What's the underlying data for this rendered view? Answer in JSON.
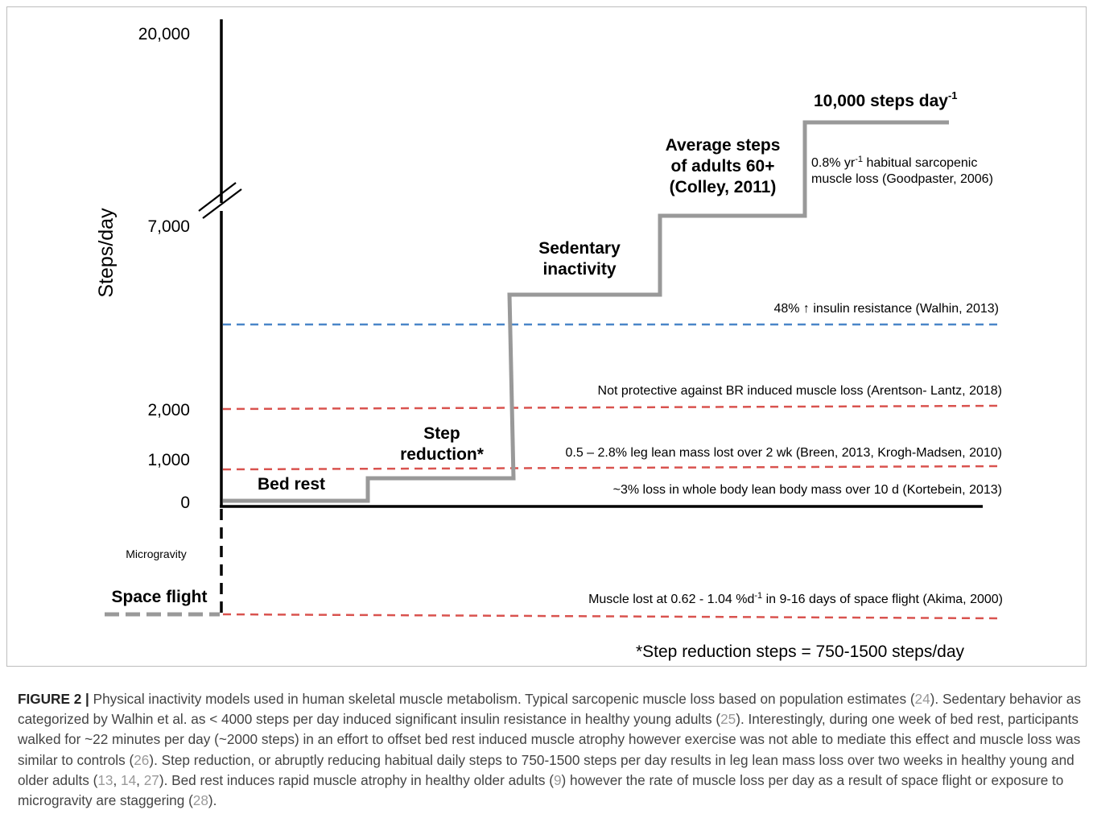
{
  "chart_data": {
    "type": "line",
    "ylabel": "Steps/day",
    "y_ticks": [
      "20,000",
      "7,000",
      "2,000",
      "1,000",
      "0"
    ],
    "axis_break": true,
    "steps_series": [
      {
        "stage": "Bed rest",
        "steps_per_day": 0
      },
      {
        "stage": "Step reduction*",
        "steps_per_day": "750-1500"
      },
      {
        "stage": "Sedentary inactivity",
        "steps_per_day": "< 4000"
      },
      {
        "stage": "Average steps of adults 60+ (Colley, 2011)",
        "steps_per_day": 7000
      },
      {
        "stage": "10,000 steps day-1",
        "steps_per_day": 10000
      }
    ],
    "stage_labels": {
      "bed_rest": "Bed rest",
      "step_reduction_1": "Step",
      "step_reduction_2": "reduction*",
      "sedentary_1": "Sedentary",
      "sedentary_2": "inactivity",
      "average_1": "Average steps",
      "average_2": "of adults 60+",
      "average_3": "(Colley, 2011)",
      "ten_thousand": "10,000 steps day",
      "ten_thousand_sup": "-1",
      "space_flight": "Space flight",
      "microgravity": "Microgravity"
    },
    "thresholds": [
      {
        "label": "48% ↑ insulin resistance (Walhin, 2013)",
        "color": "#4a86c8"
      },
      {
        "label": "Not protective against BR induced muscle loss (Arentson- Lantz, 2018)",
        "color": "#d9534f"
      },
      {
        "label": "0.5 – 2.8% leg lean mass lost over 2 wk (Breen, 2013, Krogh-Madsen, 2010)",
        "color": "#d9534f"
      },
      {
        "label": "~3% loss in whole body lean body mass over 10 d (Kortebein, 2013)",
        "color": "#000000"
      }
    ],
    "annotations": {
      "sarcopenic_1a": "0.8% yr",
      "sarcopenic_sup": "-1",
      "sarcopenic_1b": " habitual sarcopenic",
      "sarcopenic_2": "muscle loss (Goodpaster, 2006)",
      "space_a": "Muscle lost at 0.62 - 1.04 %d",
      "space_sup": "-1",
      "space_b": " in 9-16 days of space flight (Akima, 2000)",
      "footnote": "*Step reduction steps = 750-1500 steps/day"
    },
    "colors": {
      "steps_line": "#999999",
      "axis": "#000000",
      "blue_dashed": "#4a86c8",
      "red_dashed": "#d9534f"
    }
  },
  "caption": {
    "label": "FIGURE 2 |",
    "parts": [
      " Physical inactivity models used in human skeletal muscle metabolism. Typical sarcopenic muscle loss based on population estimates (",
      "24",
      "). Sedentary behavior as categorized by Walhin et al. as < 4000 steps per day induced significant insulin resistance in healthy young adults (",
      "25",
      "). Interestingly, during one week of bed rest, participants walked for ~22 minutes per day (~2000 steps) in an effort to offset bed rest induced muscle atrophy however exercise was not able to mediate this effect and muscle loss was similar to controls (",
      "26",
      "). Step reduction, or abruptly reducing habitual daily steps to 750-1500 steps per day results in leg lean mass loss over two weeks in healthy young and older adults (",
      "13",
      ", ",
      "14",
      ", ",
      "27",
      "). Bed rest induces rapid muscle atrophy in healthy older adults (",
      "9",
      ") however the rate of muscle loss per day as a result of space flight or exposure to microgravity are staggering (",
      "28",
      ")."
    ]
  }
}
